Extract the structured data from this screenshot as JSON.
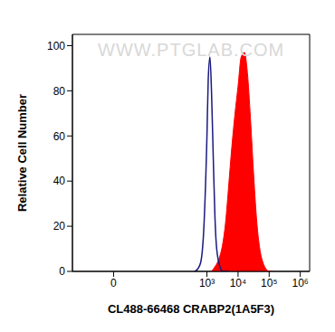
{
  "chart_data": {
    "type": "area",
    "x_label": "CL488-66468 CRABP2(1A5F3)",
    "y_label": "Relative Cell Number",
    "annotations": [
      "WWW.PTGLAB.COM"
    ],
    "log": "x",
    "grid": false,
    "x": [
      400,
      500,
      630,
      800,
      1000,
      1100,
      1250,
      1400,
      1600,
      1800,
      2000,
      2500,
      3200,
      4000,
      5000,
      6300,
      8000,
      10000,
      12600,
      16000,
      20000,
      25000,
      32000,
      40000,
      50000,
      63000,
      80000,
      100000,
      130000
    ],
    "series": [
      {
        "type": "line",
        "color": "#1a1a80",
        "values": [
          0,
          1,
          4,
          20,
          60,
          85,
          95,
          80,
          50,
          25,
          12,
          3,
          0,
          0,
          0,
          null,
          null,
          null,
          null,
          null,
          null,
          null,
          null,
          null,
          null,
          null,
          null,
          null,
          null
        ]
      },
      {
        "type": "area",
        "color": "#ff0000",
        "values": [
          null,
          null,
          null,
          null,
          null,
          null,
          null,
          0,
          1,
          2,
          3,
          6,
          12,
          22,
          38,
          55,
          70,
          82,
          95,
          97,
          88,
          68,
          42,
          22,
          10,
          4,
          1,
          0,
          0
        ]
      }
    ],
    "xlim": [
      -20,
      2000000
    ],
    "xticks": [
      0,
      {
        "value": 1000,
        "label": "10³"
      },
      {
        "value": 10000,
        "label": "10⁴"
      },
      {
        "value": 100000,
        "label": "10⁵"
      },
      {
        "value": 1000000,
        "label": "10⁶"
      }
    ],
    "ylim": [
      0,
      105
    ],
    "yticks": [
      0,
      20,
      40,
      60,
      80,
      100
    ]
  }
}
